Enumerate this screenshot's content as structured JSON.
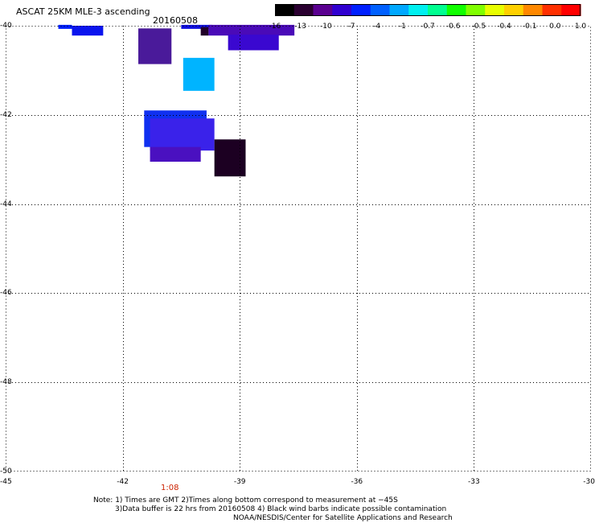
{
  "header": {
    "title": "ASCAT 25KM MLE-3 ascending",
    "date": "20160508"
  },
  "colorbar": {
    "ticks": [
      "-16",
      "-13",
      "-10",
      "-7",
      "-4",
      "-1",
      "-0.7",
      "-0.6",
      "-0.5",
      "-0.4",
      "-0.1",
      "0.0",
      "1.0"
    ],
    "colors": [
      "#000000",
      "#2a0030",
      "#5a0090",
      "#3000d0",
      "#0020ff",
      "#0060ff",
      "#00a8ff",
      "#00f0f0",
      "#00ff90",
      "#10ff00",
      "#80ff00",
      "#e8ff00",
      "#ffd000",
      "#ff8800",
      "#ff3000",
      "#ff0000"
    ]
  },
  "map": {
    "lon_range": [
      -45,
      -30
    ],
    "lat_range": [
      -50,
      -40
    ],
    "lon_labels": [
      "-45",
      "-42",
      "-39",
      "-36",
      "-33",
      "-30"
    ],
    "lat_labels": [
      "-40",
      "-42",
      "-44",
      "-46",
      "-48",
      "-50"
    ],
    "grid": "dotted",
    "time_label": "1:08",
    "cells": [
      {
        "lon_min": -43.65,
        "lon_max": -43.3,
        "lat_min": -40.07,
        "lat_max": -39.98,
        "color": "#0020ff"
      },
      {
        "lon_min": -43.3,
        "lon_max": -42.5,
        "lat_min": -40.22,
        "lat_max": -40.0,
        "color": "#0a14ee"
      },
      {
        "lon_min": -41.6,
        "lon_max": -40.75,
        "lat_min": -40.86,
        "lat_max": -40.06,
        "color": "#4a1a9a"
      },
      {
        "lon_min": -40.5,
        "lon_max": -39.7,
        "lat_min": -40.07,
        "lat_max": -39.98,
        "color": "#1010e0"
      },
      {
        "lon_min": -40.0,
        "lon_max": -39.8,
        "lat_min": -40.22,
        "lat_max": -40.03,
        "color": "#200028"
      },
      {
        "lon_min": -39.8,
        "lon_max": -37.6,
        "lat_min": -40.22,
        "lat_max": -39.98,
        "color": "#4a0ab8"
      },
      {
        "lon_min": -39.3,
        "lon_max": -38.0,
        "lat_min": -40.55,
        "lat_max": -40.2,
        "color": "#3a08d0"
      },
      {
        "lon_min": -40.45,
        "lon_max": -39.65,
        "lat_min": -41.46,
        "lat_max": -40.72,
        "color": "#00b4ff"
      },
      {
        "lon_min": -41.45,
        "lon_max": -39.85,
        "lat_min": -42.72,
        "lat_max": -41.9,
        "color": "#1030f0"
      },
      {
        "lon_min": -41.3,
        "lon_max": -39.65,
        "lat_min": -42.8,
        "lat_max": -42.08,
        "color": "#3a22ea"
      },
      {
        "lon_min": -41.3,
        "lon_max": -40.0,
        "lat_min": -43.05,
        "lat_max": -42.72,
        "color": "#4a10c0"
      },
      {
        "lon_min": -39.65,
        "lon_max": -38.85,
        "lat_min": -43.38,
        "lat_max": -42.55,
        "color": "#1c0022"
      }
    ]
  },
  "notes": {
    "line1": "Note: 1) Times are GMT 2)Times along bottom correspond to measurement at −45S",
    "line2": "3)Data buffer is 22 hrs from 20160508 4) Black wind barbs indicate possible contamination",
    "line3": "NOAA/NESDIS/Center for Satellite Applications and Research"
  }
}
